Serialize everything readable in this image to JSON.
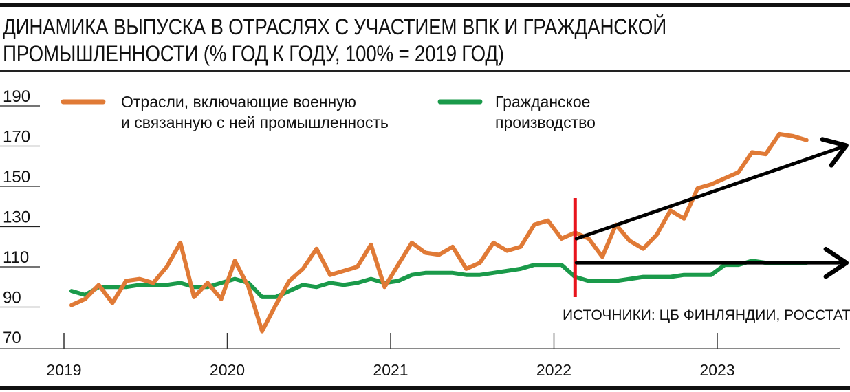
{
  "title": {
    "line1": "ДИНАМИКА ВЫПУСКА В ОТРАСЛЯХ С УЧАСТИЕМ ВПК И ГРАЖДАНСКОЙ",
    "line2": "ПРОМЫШЛЕННОСТИ (% ГОД К ГОДУ, 100% = 2019 ГОД)"
  },
  "source": "ИСТОЧНИКИ: ЦБ ФИНЛЯНДИИ, РОССТАТ.",
  "colors": {
    "military": "#e07a36",
    "civil": "#1a9a4a",
    "divider": "#e8141c",
    "arrow": "#000000"
  },
  "chart_data": {
    "type": "line",
    "title": "ДИНАМИКА ВЫПУСКА В ОТРАСЛЯХ С УЧАСТИЕМ ВПК И ГРАЖДАНСКОЙ ПРОМЫШЛЕННОСТИ (% ГОД К ГОДУ, 100% = 2019 ГОД)",
    "ylim": [
      70,
      190
    ],
    "yticks": [
      70,
      90,
      110,
      130,
      150,
      170,
      190
    ],
    "xticks": [
      "2019",
      "2020",
      "2021",
      "2022",
      "2023"
    ],
    "x_start": "2019-01",
    "x_end": "2023-09",
    "grid": false,
    "legend_position": "top",
    "series": [
      {
        "name": "Отрасли, включающие военную и связанную с ней промышленность",
        "legend_lines": [
          "Отрасли, включающие военную",
          "и связанную с ней промышленность"
        ],
        "color": "#e07a36",
        "values": [
          91,
          94,
          101,
          92,
          103,
          104,
          102,
          110,
          122,
          95,
          102,
          94,
          113,
          100,
          78,
          91,
          103,
          109,
          119,
          106,
          108,
          110,
          121,
          100,
          111,
          122,
          117,
          116,
          120,
          109,
          112,
          122,
          118,
          120,
          131,
          133,
          124,
          127,
          124,
          115,
          131,
          123,
          119,
          126,
          138,
          134,
          149,
          151,
          154,
          157,
          167,
          166,
          176,
          175,
          173
        ]
      },
      {
        "name": "Гражданское производство",
        "legend_lines": [
          "Гражданское",
          "производство"
        ],
        "color": "#1a9a4a",
        "values": [
          98,
          96,
          100,
          100,
          100,
          101,
          101,
          101,
          102,
          100,
          100,
          102,
          104,
          102,
          95,
          95,
          98,
          101,
          100,
          102,
          101,
          102,
          104,
          102,
          103,
          106,
          107,
          107,
          107,
          106,
          106,
          107,
          108,
          109,
          111,
          111,
          111,
          105,
          103,
          103,
          103,
          104,
          105,
          105,
          105,
          106,
          106,
          106,
          111,
          111,
          113,
          112,
          112,
          112,
          112
        ]
      }
    ],
    "annotations": [
      {
        "type": "vertical-line",
        "at": "2022-02",
        "color": "#e8141c"
      },
      {
        "type": "arrow",
        "from": [
          "2022-02",
          124
        ],
        "to": [
          "2023-09",
          170
        ],
        "color": "#000000"
      },
      {
        "type": "arrow",
        "from": [
          "2022-02",
          112
        ],
        "to": [
          "2023-09",
          112
        ],
        "color": "#000000"
      }
    ]
  }
}
